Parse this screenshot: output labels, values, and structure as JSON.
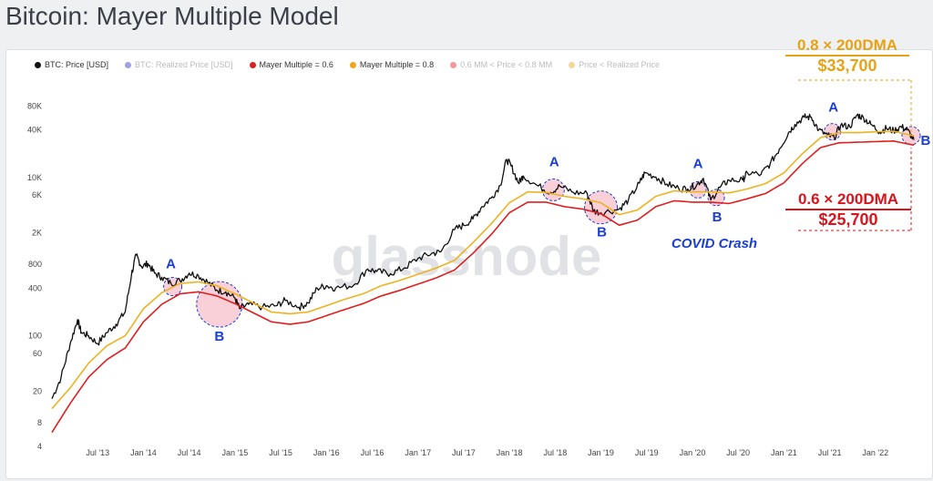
{
  "page_title": "Bitcoin: Mayer Multiple Model",
  "legend": [
    {
      "label": "BTC: Price [USD]",
      "color": "#111111",
      "dim": false
    },
    {
      "label": "BTC: Realized Price [USD]",
      "color": "#2f2fbf",
      "dim": true
    },
    {
      "label": "Mayer Multiple = 0.6",
      "color": "#e02020",
      "dim": false
    },
    {
      "label": "Mayer Multiple = 0.8",
      "color": "#f0a520",
      "dim": false
    },
    {
      "label": "0.6 MM < Price < 0.8 MM",
      "color": "#e02020",
      "dim": true
    },
    {
      "label": "Price < Realized Price",
      "color": "#f0a520",
      "dim": true
    }
  ],
  "watermark": "glassnode",
  "colors": {
    "price": "#111111",
    "mm08": "#efb21f",
    "mm06": "#e01e1e",
    "annA": "#1a3fd1",
    "annOrange": "#e6a317",
    "annRed": "#d9141b",
    "zone": "#f4a9b6"
  },
  "chart_data": {
    "type": "line",
    "y_scale": "log",
    "ylim": [
      4,
      200000
    ],
    "yticks": [
      4,
      8,
      20,
      60,
      100,
      400,
      800,
      2000,
      6000,
      10000,
      40000,
      80000
    ],
    "ytick_labels": [
      "4",
      "8",
      "20",
      "60",
      "100",
      "400",
      "800",
      "2K",
      "6K",
      "10K",
      "40K",
      "80K"
    ],
    "x_labels": [
      "Jul '13",
      "Jan '14",
      "Jul '14",
      "Jan '15",
      "Jul '15",
      "Jan '16",
      "Jul '16",
      "Jan '17",
      "Jul '17",
      "Jan '18",
      "Jul '18",
      "Jan '19",
      "Jul '19",
      "Jan '20",
      "Jul '20",
      "Jan '21",
      "Jul '21",
      "Jan '22"
    ],
    "x_label_times": [
      2013.5,
      2014.0,
      2014.5,
      2015.0,
      2015.5,
      2016.0,
      2016.5,
      2017.0,
      2017.5,
      2018.0,
      2018.5,
      2019.0,
      2019.5,
      2020.0,
      2020.5,
      2021.0,
      2021.5,
      2022.0
    ],
    "xlim": [
      2012.95,
      2022.45
    ],
    "series": [
      {
        "name": "BTC: Price [USD]",
        "key": "price",
        "points": [
          [
            2013.0,
            16
          ],
          [
            2013.1,
            30
          ],
          [
            2013.2,
            80
          ],
          [
            2013.28,
            160
          ],
          [
            2013.32,
            110
          ],
          [
            2013.4,
            100
          ],
          [
            2013.5,
            80
          ],
          [
            2013.6,
            110
          ],
          [
            2013.7,
            140
          ],
          [
            2013.8,
            200
          ],
          [
            2013.87,
            600
          ],
          [
            2013.92,
            1050
          ],
          [
            2013.98,
            750
          ],
          [
            2014.05,
            820
          ],
          [
            2014.12,
            620
          ],
          [
            2014.2,
            550
          ],
          [
            2014.3,
            460
          ],
          [
            2014.4,
            500
          ],
          [
            2014.5,
            620
          ],
          [
            2014.6,
            580
          ],
          [
            2014.7,
            480
          ],
          [
            2014.8,
            380
          ],
          [
            2014.9,
            360
          ],
          [
            2015.0,
            300
          ],
          [
            2015.05,
            220
          ],
          [
            2015.15,
            250
          ],
          [
            2015.3,
            230
          ],
          [
            2015.45,
            240
          ],
          [
            2015.55,
            280
          ],
          [
            2015.7,
            230
          ],
          [
            2015.8,
            260
          ],
          [
            2015.9,
            400
          ],
          [
            2016.0,
            430
          ],
          [
            2016.1,
            400
          ],
          [
            2016.3,
            440
          ],
          [
            2016.45,
            700
          ],
          [
            2016.55,
            650
          ],
          [
            2016.7,
            610
          ],
          [
            2016.85,
            720
          ],
          [
            2017.0,
            950
          ],
          [
            2017.15,
            1100
          ],
          [
            2017.25,
            1150
          ],
          [
            2017.4,
            2200
          ],
          [
            2017.5,
            2500
          ],
          [
            2017.6,
            3000
          ],
          [
            2017.7,
            4300
          ],
          [
            2017.8,
            5500
          ],
          [
            2017.9,
            8000
          ],
          [
            2017.97,
            17000
          ],
          [
            2018.02,
            14000
          ],
          [
            2018.1,
            8500
          ],
          [
            2018.15,
            10500
          ],
          [
            2018.3,
            8000
          ],
          [
            2018.45,
            6500
          ],
          [
            2018.55,
            7800
          ],
          [
            2018.7,
            6500
          ],
          [
            2018.85,
            6300
          ],
          [
            2018.92,
            3800
          ],
          [
            2019.0,
            3600
          ],
          [
            2019.2,
            4000
          ],
          [
            2019.3,
            5200
          ],
          [
            2019.42,
            8500
          ],
          [
            2019.48,
            11500
          ],
          [
            2019.6,
            10200
          ],
          [
            2019.72,
            8300
          ],
          [
            2019.85,
            7300
          ],
          [
            2019.95,
            7200
          ],
          [
            2020.05,
            8200
          ],
          [
            2020.12,
            9800
          ],
          [
            2020.2,
            5200
          ],
          [
            2020.3,
            7500
          ],
          [
            2020.4,
            9300
          ],
          [
            2020.55,
            9300
          ],
          [
            2020.6,
            11500
          ],
          [
            2020.75,
            11000
          ],
          [
            2020.85,
            15000
          ],
          [
            2020.95,
            23000
          ],
          [
            2021.05,
            37000
          ],
          [
            2021.12,
            47000
          ],
          [
            2021.22,
            58000
          ],
          [
            2021.3,
            58000
          ],
          [
            2021.38,
            40000
          ],
          [
            2021.48,
            34000
          ],
          [
            2021.55,
            32000
          ],
          [
            2021.62,
            46000
          ],
          [
            2021.72,
            44000
          ],
          [
            2021.8,
            62000
          ],
          [
            2021.87,
            57000
          ],
          [
            2021.95,
            47000
          ],
          [
            2022.05,
            38000
          ],
          [
            2022.12,
            42000
          ],
          [
            2022.2,
            39000
          ],
          [
            2022.28,
            44000
          ],
          [
            2022.35,
            40000
          ],
          [
            2022.42,
            30000
          ]
        ]
      },
      {
        "name": "Mayer Multiple = 0.8",
        "key": "mm08",
        "points": [
          [
            2013.0,
            12
          ],
          [
            2013.2,
            22
          ],
          [
            2013.4,
            45
          ],
          [
            2013.6,
            75
          ],
          [
            2013.8,
            100
          ],
          [
            2014.0,
            220
          ],
          [
            2014.2,
            350
          ],
          [
            2014.4,
            460
          ],
          [
            2014.6,
            480
          ],
          [
            2014.8,
            430
          ],
          [
            2015.0,
            340
          ],
          [
            2015.2,
            260
          ],
          [
            2015.4,
            200
          ],
          [
            2015.6,
            190
          ],
          [
            2015.8,
            200
          ],
          [
            2016.0,
            240
          ],
          [
            2016.2,
            290
          ],
          [
            2016.4,
            340
          ],
          [
            2016.6,
            430
          ],
          [
            2016.8,
            500
          ],
          [
            2017.0,
            600
          ],
          [
            2017.2,
            720
          ],
          [
            2017.4,
            900
          ],
          [
            2017.6,
            1500
          ],
          [
            2017.8,
            2600
          ],
          [
            2018.0,
            4800
          ],
          [
            2018.2,
            6600
          ],
          [
            2018.4,
            6500
          ],
          [
            2018.6,
            5800
          ],
          [
            2018.8,
            5400
          ],
          [
            2019.0,
            4800
          ],
          [
            2019.2,
            3400
          ],
          [
            2019.4,
            3900
          ],
          [
            2019.6,
            5800
          ],
          [
            2019.8,
            6800
          ],
          [
            2020.0,
            6600
          ],
          [
            2020.2,
            6600
          ],
          [
            2020.4,
            6400
          ],
          [
            2020.6,
            7200
          ],
          [
            2020.8,
            8400
          ],
          [
            2021.0,
            11500
          ],
          [
            2021.2,
            20000
          ],
          [
            2021.4,
            32000
          ],
          [
            2021.6,
            37000
          ],
          [
            2021.8,
            37000
          ],
          [
            2022.0,
            38000
          ],
          [
            2022.2,
            38500
          ],
          [
            2022.42,
            33700
          ]
        ]
      },
      {
        "name": "Mayer Multiple = 0.6",
        "key": "mm06",
        "points": [
          [
            2013.0,
            6
          ],
          [
            2013.2,
            14
          ],
          [
            2013.4,
            30
          ],
          [
            2013.6,
            50
          ],
          [
            2013.8,
            70
          ],
          [
            2014.0,
            150
          ],
          [
            2014.2,
            250
          ],
          [
            2014.4,
            340
          ],
          [
            2014.6,
            360
          ],
          [
            2014.8,
            320
          ],
          [
            2015.0,
            255
          ],
          [
            2015.2,
            195
          ],
          [
            2015.4,
            150
          ],
          [
            2015.6,
            140
          ],
          [
            2015.8,
            150
          ],
          [
            2016.0,
            180
          ],
          [
            2016.2,
            215
          ],
          [
            2016.4,
            255
          ],
          [
            2016.6,
            320
          ],
          [
            2016.8,
            375
          ],
          [
            2017.0,
            450
          ],
          [
            2017.2,
            540
          ],
          [
            2017.4,
            680
          ],
          [
            2017.6,
            1100
          ],
          [
            2017.8,
            1900
          ],
          [
            2018.0,
            3600
          ],
          [
            2018.2,
            4900
          ],
          [
            2018.4,
            4900
          ],
          [
            2018.6,
            4300
          ],
          [
            2018.8,
            4000
          ],
          [
            2019.0,
            3500
          ],
          [
            2019.2,
            2500
          ],
          [
            2019.4,
            2900
          ],
          [
            2019.6,
            4300
          ],
          [
            2019.8,
            5100
          ],
          [
            2020.0,
            4900
          ],
          [
            2020.2,
            4900
          ],
          [
            2020.4,
            4700
          ],
          [
            2020.6,
            5400
          ],
          [
            2020.8,
            6300
          ],
          [
            2021.0,
            8600
          ],
          [
            2021.2,
            15000
          ],
          [
            2021.4,
            24000
          ],
          [
            2021.6,
            27500
          ],
          [
            2021.8,
            28000
          ],
          [
            2022.0,
            28500
          ],
          [
            2022.2,
            29000
          ],
          [
            2022.42,
            25700
          ]
        ]
      }
    ],
    "annotations": [
      {
        "label": "A",
        "t": 2014.32,
        "v": 420,
        "r": 10,
        "label_dx": -2,
        "label_dy": -20
      },
      {
        "label": "B",
        "t": 2014.83,
        "v": 250,
        "r": 25,
        "label_dx": 0,
        "label_dy": 40
      },
      {
        "label": "A",
        "t": 2018.48,
        "v": 7000,
        "r": 12,
        "label_dx": 1,
        "label_dy": -26
      },
      {
        "label": "B",
        "t": 2019.0,
        "v": 4200,
        "r": 18,
        "label_dx": 1,
        "label_dy": 32
      },
      {
        "label": "A",
        "t": 2020.06,
        "v": 7000,
        "r": 9,
        "label_dx": 0,
        "label_dy": -24
      },
      {
        "label": "B",
        "t": 2020.26,
        "v": 5600,
        "r": 9,
        "label_dx": 1,
        "label_dy": 26
      },
      {
        "label": "A",
        "t": 2021.53,
        "v": 38000,
        "r": 9,
        "label_dx": 1,
        "label_dy": -22
      },
      {
        "label": "B",
        "t": 2022.39,
        "v": 34000,
        "r": 10,
        "label_dx": 16,
        "label_dy": 10
      }
    ],
    "covid_label": "COVID Crash",
    "callouts": {
      "mm08_title": "0.8 × 200DMA",
      "mm08_value": "$33,700",
      "mm06_title": "0.6 × 200DMA",
      "mm06_value": "$25,700"
    }
  }
}
